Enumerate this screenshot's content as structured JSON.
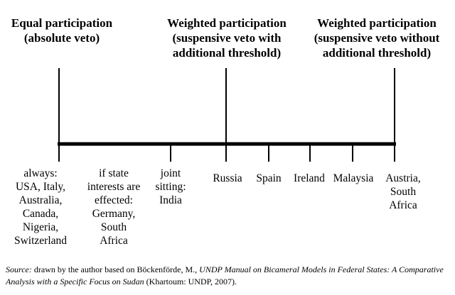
{
  "headers": [
    {
      "id": "equal",
      "lines": [
        "Equal participation",
        "(absolute veto)"
      ]
    },
    {
      "id": "weighted-threshold",
      "lines": [
        "Weighted participation",
        "(suspensive veto with",
        "additional threshold)"
      ]
    },
    {
      "id": "weighted-no-threshold",
      "lines": [
        "Weighted participation",
        "(suspensive veto without",
        "additional threshold)"
      ]
    }
  ],
  "labels": [
    {
      "id": "always",
      "lines": [
        "always:",
        "USA, Italy,",
        "Australia,",
        "Canada,",
        "Nigeria,",
        "Switzerland"
      ]
    },
    {
      "id": "state-interests",
      "lines": [
        "if state",
        "interests are",
        "effected:",
        "Germany,",
        "South",
        "Africa"
      ]
    },
    {
      "id": "joint-sitting",
      "lines": [
        "joint",
        "sitting:",
        "India"
      ]
    },
    {
      "id": "russia",
      "lines": [
        "Russia"
      ]
    },
    {
      "id": "spain",
      "lines": [
        "Spain"
      ]
    },
    {
      "id": "ireland",
      "lines": [
        "Ireland"
      ]
    },
    {
      "id": "malaysia",
      "lines": [
        "Malaysia"
      ]
    },
    {
      "id": "austria",
      "lines": [
        "Austria,",
        "South",
        "Africa"
      ]
    }
  ],
  "source": {
    "label": "Source:",
    "text_before": " drawn by the author based on Böckenförde, M., ",
    "title": "UNDP Manual on Bicameral Models in Federal States: A Comparative Analysis with a Specific Focus on Sudan",
    "text_after": " (Khartoum: UNDP, 2007)."
  }
}
